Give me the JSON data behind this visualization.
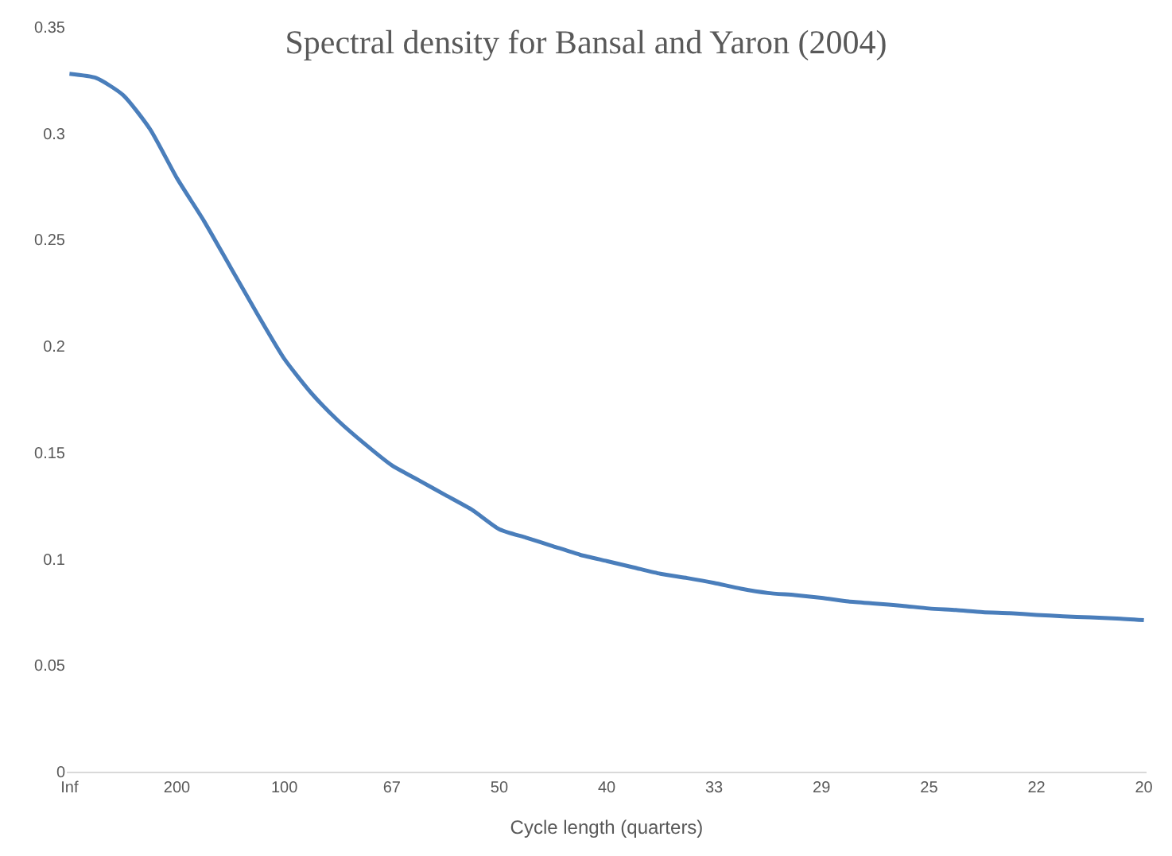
{
  "chart_data": {
    "type": "line",
    "title": "Spectral density for Bansal and Yaron (2004)",
    "xlabel": "Cycle length (quarters)",
    "categories": [
      "Inf",
      null,
      null,
      null,
      "200",
      null,
      null,
      null,
      "100",
      null,
      null,
      null,
      "67",
      null,
      null,
      null,
      "50",
      null,
      null,
      null,
      "40",
      null,
      null,
      null,
      "33",
      null,
      null,
      null,
      "29",
      null,
      null,
      null,
      "25",
      null,
      null,
      null,
      "22",
      null,
      null,
      null,
      "20"
    ],
    "series": [
      {
        "color": "#4a7ebb",
        "values": [
          0.328,
          0.326,
          0.318,
          0.302,
          0.279,
          0.259,
          0.237,
          0.215,
          0.194,
          0.178,
          0.165,
          0.154,
          0.144,
          0.137,
          0.13,
          0.123,
          0.114,
          0.11,
          0.106,
          0.102,
          0.099,
          0.096,
          0.093,
          0.091,
          0.0887,
          0.086,
          0.084,
          0.083,
          0.0817,
          0.08,
          0.079,
          0.078,
          0.0767,
          0.076,
          0.075,
          0.0745,
          0.0737,
          0.073,
          0.0725,
          0.072,
          0.0712
        ]
      }
    ],
    "ylim": [
      0,
      0.35
    ],
    "yticks": [
      0,
      0.05,
      0.1,
      0.15,
      0.2,
      0.25,
      0.3,
      0.35
    ],
    "marker": "none",
    "line_style": "solid"
  }
}
